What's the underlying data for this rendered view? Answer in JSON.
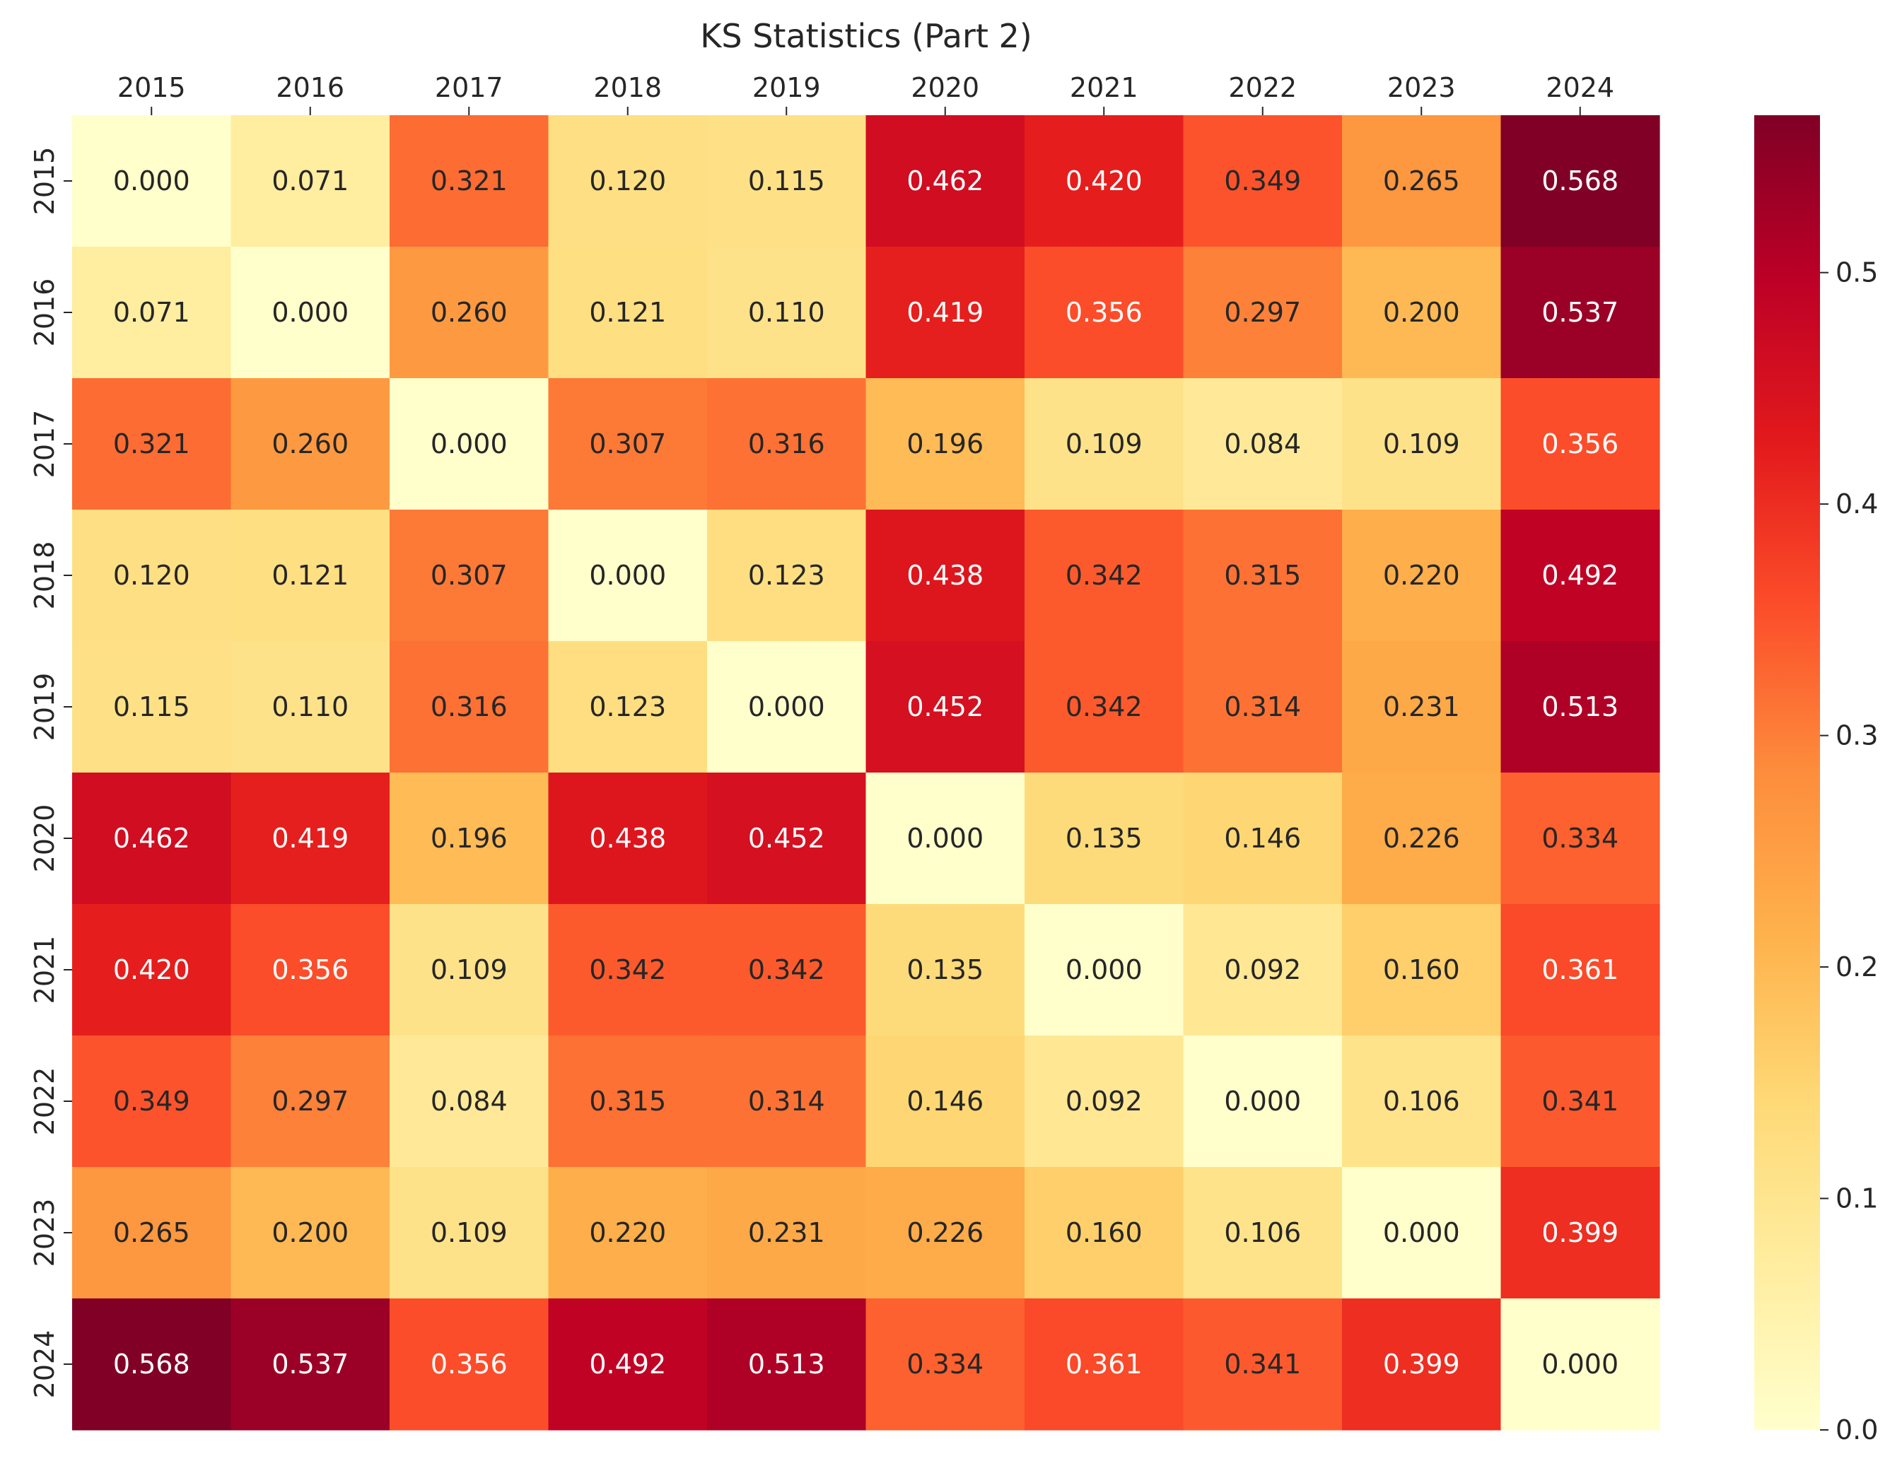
{
  "chart_data": {
    "type": "heatmap",
    "title": "KS Statistics (Part 2)",
    "x_labels": [
      "2015",
      "2016",
      "2017",
      "2018",
      "2019",
      "2020",
      "2021",
      "2022",
      "2023",
      "2024"
    ],
    "y_labels": [
      "2015",
      "2016",
      "2017",
      "2018",
      "2019",
      "2020",
      "2021",
      "2022",
      "2023",
      "2024"
    ],
    "x_axis_position": "top",
    "colormap": "YlOrRd",
    "vmin": 0.0,
    "vmax": 0.568,
    "value_format": "3 decimals",
    "values": [
      [
        0.0,
        0.071,
        0.321,
        0.12,
        0.115,
        0.462,
        0.42,
        0.349,
        0.265,
        0.568
      ],
      [
        0.071,
        0.0,
        0.26,
        0.121,
        0.11,
        0.419,
        0.356,
        0.297,
        0.2,
        0.537
      ],
      [
        0.321,
        0.26,
        0.0,
        0.307,
        0.316,
        0.196,
        0.109,
        0.084,
        0.109,
        0.356
      ],
      [
        0.12,
        0.121,
        0.307,
        0.0,
        0.123,
        0.438,
        0.342,
        0.315,
        0.22,
        0.492
      ],
      [
        0.115,
        0.11,
        0.316,
        0.123,
        0.0,
        0.452,
        0.342,
        0.314,
        0.231,
        0.513
      ],
      [
        0.462,
        0.419,
        0.196,
        0.438,
        0.452,
        0.0,
        0.135,
        0.146,
        0.226,
        0.334
      ],
      [
        0.42,
        0.356,
        0.109,
        0.342,
        0.342,
        0.135,
        0.0,
        0.092,
        0.16,
        0.361
      ],
      [
        0.349,
        0.297,
        0.084,
        0.315,
        0.314,
        0.146,
        0.092,
        0.0,
        0.106,
        0.341
      ],
      [
        0.265,
        0.2,
        0.109,
        0.22,
        0.231,
        0.226,
        0.16,
        0.106,
        0.0,
        0.399
      ],
      [
        0.568,
        0.537,
        0.356,
        0.492,
        0.513,
        0.334,
        0.361,
        0.341,
        0.399,
        0.0
      ]
    ],
    "colorbar": {
      "ticks": [
        0.0,
        0.1,
        0.2,
        0.3,
        0.4,
        0.5
      ],
      "tick_labels": [
        "0.0",
        "0.1",
        "0.2",
        "0.3",
        "0.4",
        "0.5"
      ]
    },
    "grid": false
  }
}
